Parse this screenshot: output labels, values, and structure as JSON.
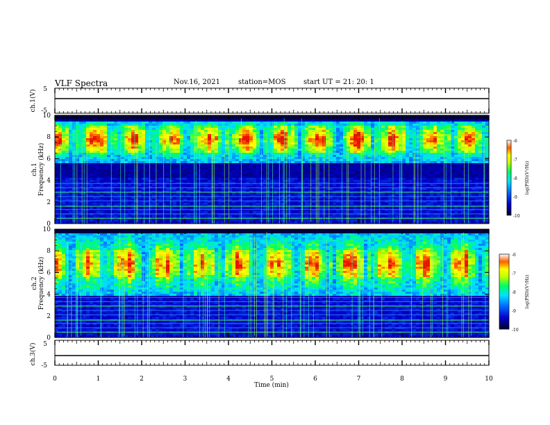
{
  "header": {
    "title": "VLF Spectra",
    "date": "Nov.16, 2021",
    "station": "station=MOS",
    "start": "start  UT =   21: 20: 1"
  },
  "chart_data": [
    {
      "type": "line",
      "panel": "ch1-waveform",
      "ylabel": "ch.1(V)",
      "yticks": [
        "5",
        "-5"
      ],
      "ylim": [
        -5,
        5
      ],
      "baseline": 0
    },
    {
      "type": "heatmap",
      "panel": "ch1-spectrogram",
      "ylabel": "ch.1\nFrequency (kHz)",
      "yticks": [
        "0",
        "2",
        "4",
        "6",
        "8",
        "10"
      ],
      "ylim": [
        0,
        10
      ],
      "xlim": [
        0,
        10
      ],
      "band_khz": [
        5.5,
        9.5
      ],
      "core_khz": [
        6.5,
        9.0
      ],
      "noise_floor_khz": 4.2,
      "colorbar": {
        "label": "log(PSD)(V²/Hz)",
        "ticks": [
          "-6",
          "-7",
          "-8",
          "-9",
          "-10"
        ],
        "range": [
          -10,
          -6
        ]
      }
    },
    {
      "type": "heatmap",
      "panel": "ch2-spectrogram",
      "ylabel": "ch.2\nFrequency (kHz)",
      "yticks": [
        "0",
        "2",
        "4",
        "6",
        "8",
        "10"
      ],
      "ylim": [
        0,
        10
      ],
      "xlim": [
        0,
        10
      ],
      "band_khz": [
        3.8,
        10
      ],
      "core_khz": [
        5.5,
        8.0
      ],
      "noise_floor_khz": 3.6,
      "colorbar": {
        "label": "log(PSD)(V²/Hz)",
        "ticks": [
          "-6",
          "-7",
          "-8",
          "-9",
          "-10"
        ],
        "range": [
          -10,
          -6
        ]
      }
    },
    {
      "type": "line",
      "panel": "ch3-waveform",
      "ylabel": "ch.3(V)",
      "yticks": [
        "5",
        "-5"
      ],
      "ylim": [
        -5,
        5
      ],
      "baseline": 0,
      "xlabel": "Time (min)",
      "xticks": [
        "0",
        "1",
        "2",
        "3",
        "4",
        "5",
        "6",
        "7",
        "8",
        "9",
        "10"
      ]
    }
  ],
  "colors": {
    "axis": "#000000",
    "background": "#ffffff"
  }
}
